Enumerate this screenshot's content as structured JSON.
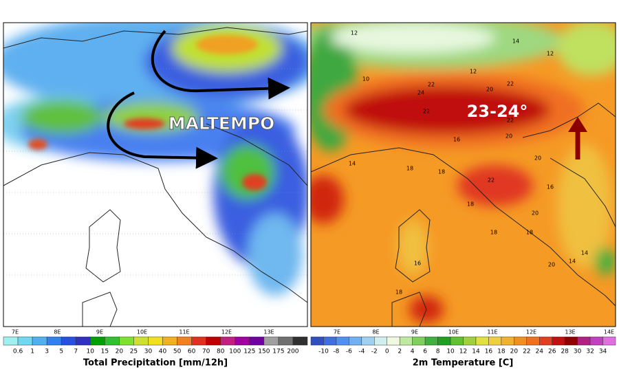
{
  "left_map": {
    "annotation": "MALTEMPO",
    "lon_labels": [
      "7E",
      "8E",
      "9E",
      "10E",
      "11E",
      "12E",
      "13E"
    ],
    "colorbar": {
      "title": "Total Precipitation [mm/12h]",
      "labels": [
        0.6,
        1,
        3,
        5,
        7,
        10,
        15,
        20,
        25,
        30,
        40,
        50,
        60,
        70,
        80,
        100,
        125,
        150,
        175,
        200
      ],
      "colors": [
        "#a0f0f0",
        "#70d8f0",
        "#50b0f0",
        "#3080f0",
        "#2850e0",
        "#3030c0",
        "#00a000",
        "#30c030",
        "#80e030",
        "#d0e030",
        "#f0e020",
        "#f0b020",
        "#f08020",
        "#e03020",
        "#c00000",
        "#c02080",
        "#a000a0",
        "#7000a0",
        "#a0a0a0",
        "#707070",
        "#303030"
      ]
    }
  },
  "right_map": {
    "annotation": "23-24°",
    "lon_labels": [
      "7E",
      "8E",
      "9E",
      "10E",
      "11E",
      "12E",
      "13E",
      "14E"
    ],
    "map_labels": [
      "12",
      "14",
      "12",
      "10",
      "24",
      "22",
      "20",
      "22",
      "12",
      "22",
      "16",
      "14",
      "20",
      "22",
      "18",
      "18",
      "22",
      "20",
      "18",
      "16",
      "18",
      "18",
      "20",
      "14",
      "16",
      "20",
      "14",
      "18"
    ],
    "colorbar": {
      "title": "2m Temperature [C]",
      "labels": [
        -10,
        -8,
        -6,
        -4,
        -2,
        0,
        2,
        4,
        6,
        8,
        10,
        12,
        14,
        16,
        18,
        20,
        22,
        24,
        26,
        28,
        30,
        32,
        34
      ],
      "colors": [
        "#3050c0",
        "#4070e0",
        "#5090f0",
        "#70b0f0",
        "#a0d0f0",
        "#d0f0f0",
        "#f0f8e0",
        "#c0e8a0",
        "#80d060",
        "#40b040",
        "#20a020",
        "#60c030",
        "#a0d040",
        "#e0e040",
        "#f0d040",
        "#f0b030",
        "#f09020",
        "#f07020",
        "#e04020",
        "#c01010",
        "#900000",
        "#b02080",
        "#c040c0",
        "#e070e0"
      ]
    }
  }
}
